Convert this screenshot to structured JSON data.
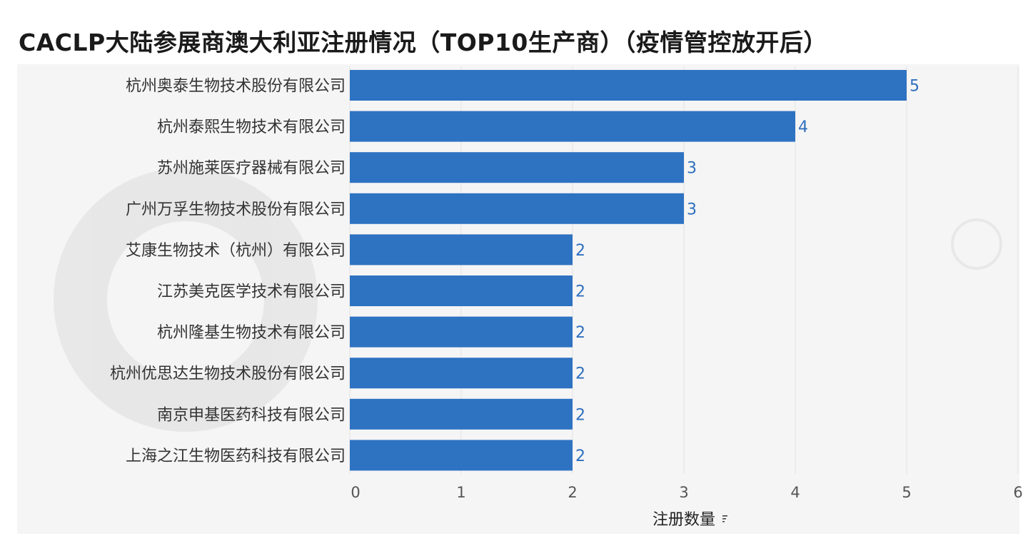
{
  "chart_data": {
    "type": "bar",
    "orientation": "horizontal",
    "title": "CACLP大陆参展商澳大利亚注册情况（TOP10生产商）（疫情管控放开后）",
    "xlabel": "注册数量",
    "ylabel": "",
    "categories": [
      "杭州奥泰生物技术股份有限公司",
      "杭州泰熙生物技术有限公司",
      "苏州施莱医疗器械有限公司",
      "广州万孚生物技术股份有限公司",
      "艾康生物技术（杭州）有限公司",
      "江苏美克医学技术有限公司",
      "杭州隆基生物技术有限公司",
      "杭州优思达生物技术股份有限公司",
      "南京申基医药科技有限公司",
      "上海之江生物医药科技有限公司"
    ],
    "values": [
      5,
      4,
      3,
      3,
      2,
      2,
      2,
      2,
      2,
      2
    ],
    "xlim": [
      0,
      6
    ],
    "xticks": [
      0,
      1,
      2,
      3,
      4,
      5,
      6
    ],
    "grid": true,
    "bar_color": "#2e72c2",
    "label_color": "#2e6fbe"
  }
}
